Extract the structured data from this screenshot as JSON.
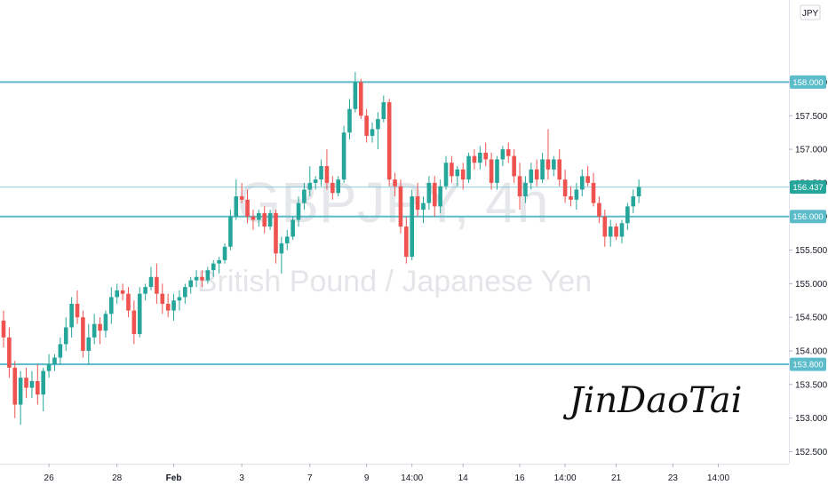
{
  "chart_data": {
    "type": "candlestick",
    "watermark": {
      "symbol": "GBPJPY, 4h",
      "name": "British Pound / Japanese Yen"
    },
    "currency": "JPY",
    "y_axis": {
      "ylim": [
        152.4,
        159.0
      ],
      "ticks": [
        "152.500",
        "153.000",
        "153.500",
        "154.000",
        "154.500",
        "155.000",
        "155.500",
        "156.000",
        "156.500",
        "157.000",
        "157.500",
        "158.000"
      ]
    },
    "x_axis": {
      "ticks": [
        {
          "label": "26",
          "i": 8,
          "bold": false
        },
        {
          "label": "28",
          "i": 20,
          "bold": false
        },
        {
          "label": "Feb",
          "i": 30,
          "bold": true
        },
        {
          "label": "3",
          "i": 42,
          "bold": false
        },
        {
          "label": "7",
          "i": 54,
          "bold": false
        },
        {
          "label": "9",
          "i": 64,
          "bold": false
        },
        {
          "label": "14:00",
          "i": 72,
          "bold": false
        },
        {
          "label": "14",
          "i": 81,
          "bold": false
        },
        {
          "label": "16",
          "i": 91,
          "bold": false
        },
        {
          "label": "14:00",
          "i": 99,
          "bold": false
        },
        {
          "label": "21",
          "i": 108,
          "bold": false
        },
        {
          "label": "23",
          "i": 118,
          "bold": false
        },
        {
          "label": "14:00",
          "i": 126,
          "bold": false
        }
      ]
    },
    "levels": [
      {
        "value": 158.0,
        "label": "158.000"
      },
      {
        "value": 156.0,
        "label": "156.000"
      },
      {
        "value": 153.8,
        "label": "153.800"
      }
    ],
    "current_price": {
      "value": 156.437,
      "label": "156.437"
    },
    "candles": [
      [
        154.45,
        154.6,
        154.05,
        154.2
      ],
      [
        154.2,
        154.35,
        153.6,
        153.75
      ],
      [
        153.75,
        153.85,
        153.0,
        153.2
      ],
      [
        153.2,
        153.7,
        152.9,
        153.6
      ],
      [
        153.6,
        153.75,
        153.3,
        153.45
      ],
      [
        153.45,
        153.7,
        153.3,
        153.55
      ],
      [
        153.55,
        153.8,
        153.2,
        153.35
      ],
      [
        153.35,
        153.75,
        153.1,
        153.7
      ],
      [
        153.7,
        153.95,
        153.6,
        153.8
      ],
      [
        153.8,
        153.95,
        153.7,
        153.9
      ],
      [
        153.9,
        154.2,
        153.8,
        154.1
      ],
      [
        154.1,
        154.5,
        154.0,
        154.35
      ],
      [
        154.35,
        154.8,
        154.2,
        154.7
      ],
      [
        154.7,
        154.9,
        154.4,
        154.5
      ],
      [
        154.5,
        154.6,
        153.9,
        154.0
      ],
      [
        154.0,
        154.4,
        153.8,
        154.2
      ],
      [
        154.2,
        154.55,
        154.1,
        154.4
      ],
      [
        154.4,
        154.5,
        154.1,
        154.3
      ],
      [
        154.3,
        154.6,
        154.2,
        154.55
      ],
      [
        154.55,
        154.95,
        154.4,
        154.8
      ],
      [
        154.8,
        155.0,
        154.7,
        154.9
      ],
      [
        154.9,
        155.0,
        154.75,
        154.85
      ],
      [
        154.85,
        154.95,
        154.5,
        154.6
      ],
      [
        154.6,
        154.75,
        154.1,
        154.25
      ],
      [
        154.25,
        154.95,
        154.2,
        154.85
      ],
      [
        154.85,
        155.0,
        154.75,
        154.95
      ],
      [
        154.95,
        155.25,
        154.9,
        155.1
      ],
      [
        155.1,
        155.3,
        154.7,
        154.85
      ],
      [
        154.85,
        155.0,
        154.55,
        154.7
      ],
      [
        154.7,
        154.85,
        154.5,
        154.6
      ],
      [
        154.6,
        154.85,
        154.45,
        154.75
      ],
      [
        154.75,
        154.9,
        154.6,
        154.8
      ],
      [
        154.8,
        155.0,
        154.7,
        154.95
      ],
      [
        154.95,
        155.1,
        154.85,
        155.05
      ],
      [
        155.05,
        155.2,
        154.95,
        155.1
      ],
      [
        155.1,
        155.2,
        154.95,
        155.05
      ],
      [
        155.05,
        155.25,
        155.0,
        155.2
      ],
      [
        155.2,
        155.35,
        155.1,
        155.3
      ],
      [
        155.3,
        155.4,
        155.15,
        155.35
      ],
      [
        155.35,
        155.6,
        155.3,
        155.55
      ],
      [
        155.55,
        156.1,
        155.5,
        156.0
      ],
      [
        156.0,
        156.55,
        155.95,
        156.3
      ],
      [
        156.3,
        156.5,
        156.2,
        156.25
      ],
      [
        156.25,
        156.4,
        155.9,
        156.0
      ],
      [
        156.0,
        156.1,
        155.8,
        155.95
      ],
      [
        155.95,
        156.1,
        155.85,
        156.05
      ],
      [
        156.05,
        156.15,
        155.75,
        155.85
      ],
      [
        155.85,
        156.1,
        155.8,
        156.05
      ],
      [
        156.05,
        156.1,
        155.3,
        155.45
      ],
      [
        155.45,
        155.7,
        155.15,
        155.6
      ],
      [
        155.6,
        155.8,
        155.5,
        155.7
      ],
      [
        155.7,
        156.0,
        155.65,
        155.95
      ],
      [
        155.95,
        156.3,
        155.85,
        156.2
      ],
      [
        156.2,
        156.5,
        156.1,
        156.4
      ],
      [
        156.4,
        156.75,
        156.3,
        156.5
      ],
      [
        156.5,
        156.6,
        156.4,
        156.55
      ],
      [
        156.55,
        156.85,
        156.45,
        156.75
      ],
      [
        156.75,
        157.0,
        156.4,
        156.5
      ],
      [
        156.5,
        156.6,
        156.25,
        156.35
      ],
      [
        156.35,
        156.6,
        156.3,
        156.55
      ],
      [
        156.55,
        157.35,
        156.5,
        157.25
      ],
      [
        157.25,
        157.75,
        157.15,
        157.6
      ],
      [
        157.6,
        158.15,
        157.55,
        158.0
      ],
      [
        158.0,
        158.05,
        157.45,
        157.5
      ],
      [
        157.5,
        157.6,
        157.1,
        157.2
      ],
      [
        157.2,
        157.4,
        157.1,
        157.3
      ],
      [
        157.3,
        157.55,
        157.0,
        157.45
      ],
      [
        157.45,
        157.8,
        157.4,
        157.7
      ],
      [
        157.7,
        157.75,
        156.45,
        156.55
      ],
      [
        156.55,
        156.65,
        156.3,
        156.45
      ],
      [
        156.45,
        156.55,
        155.75,
        155.85
      ],
      [
        155.85,
        156.0,
        155.3,
        155.4
      ],
      [
        155.4,
        156.4,
        155.35,
        156.3
      ],
      [
        156.3,
        156.5,
        156.0,
        156.1
      ],
      [
        156.1,
        156.3,
        155.9,
        156.2
      ],
      [
        156.2,
        156.6,
        156.1,
        156.5
      ],
      [
        156.5,
        156.6,
        156.0,
        156.15
      ],
      [
        156.15,
        156.55,
        156.05,
        156.45
      ],
      [
        156.45,
        156.9,
        156.4,
        156.8
      ],
      [
        156.8,
        156.9,
        156.5,
        156.6
      ],
      [
        156.6,
        156.75,
        156.45,
        156.7
      ],
      [
        156.7,
        156.8,
        156.4,
        156.55
      ],
      [
        156.55,
        156.95,
        156.5,
        156.9
      ],
      [
        156.9,
        157.0,
        156.7,
        156.8
      ],
      [
        156.8,
        157.05,
        156.7,
        156.95
      ],
      [
        156.95,
        157.1,
        156.75,
        156.85
      ],
      [
        156.85,
        156.95,
        156.4,
        156.5
      ],
      [
        156.5,
        156.9,
        156.4,
        156.85
      ],
      [
        156.85,
        157.05,
        156.75,
        157.0
      ],
      [
        157.0,
        157.1,
        156.8,
        156.9
      ],
      [
        156.9,
        157.0,
        156.5,
        156.6
      ],
      [
        156.6,
        156.8,
        156.1,
        156.3
      ],
      [
        156.3,
        156.6,
        156.2,
        156.5
      ],
      [
        156.5,
        156.8,
        156.4,
        156.7
      ],
      [
        156.7,
        156.85,
        156.45,
        156.55
      ],
      [
        156.55,
        156.95,
        156.5,
        156.85
      ],
      [
        156.85,
        157.3,
        156.55,
        156.7
      ],
      [
        156.7,
        156.9,
        156.6,
        156.85
      ],
      [
        156.85,
        157.0,
        156.45,
        156.55
      ],
      [
        156.55,
        156.7,
        156.2,
        156.3
      ],
      [
        156.3,
        156.45,
        156.15,
        156.25
      ],
      [
        156.25,
        156.5,
        156.1,
        156.4
      ],
      [
        156.4,
        156.7,
        156.3,
        156.6
      ],
      [
        156.6,
        156.75,
        156.45,
        156.5
      ],
      [
        156.5,
        156.65,
        156.15,
        156.2
      ],
      [
        156.2,
        156.3,
        155.9,
        156.0
      ],
      [
        156.0,
        156.1,
        155.55,
        155.7
      ],
      [
        155.7,
        155.95,
        155.55,
        155.85
      ],
      [
        155.85,
        155.9,
        155.65,
        155.7
      ],
      [
        155.7,
        155.95,
        155.6,
        155.9
      ],
      [
        155.9,
        156.2,
        155.8,
        156.15
      ],
      [
        156.15,
        156.4,
        156.05,
        156.3
      ],
      [
        156.3,
        156.55,
        156.2,
        156.44
      ]
    ],
    "colors": {
      "up": "#26a69a",
      "down": "#ef5350",
      "level": "#5dbcca",
      "badge": "#26a69a"
    }
  },
  "signature": "JinDaoTai"
}
